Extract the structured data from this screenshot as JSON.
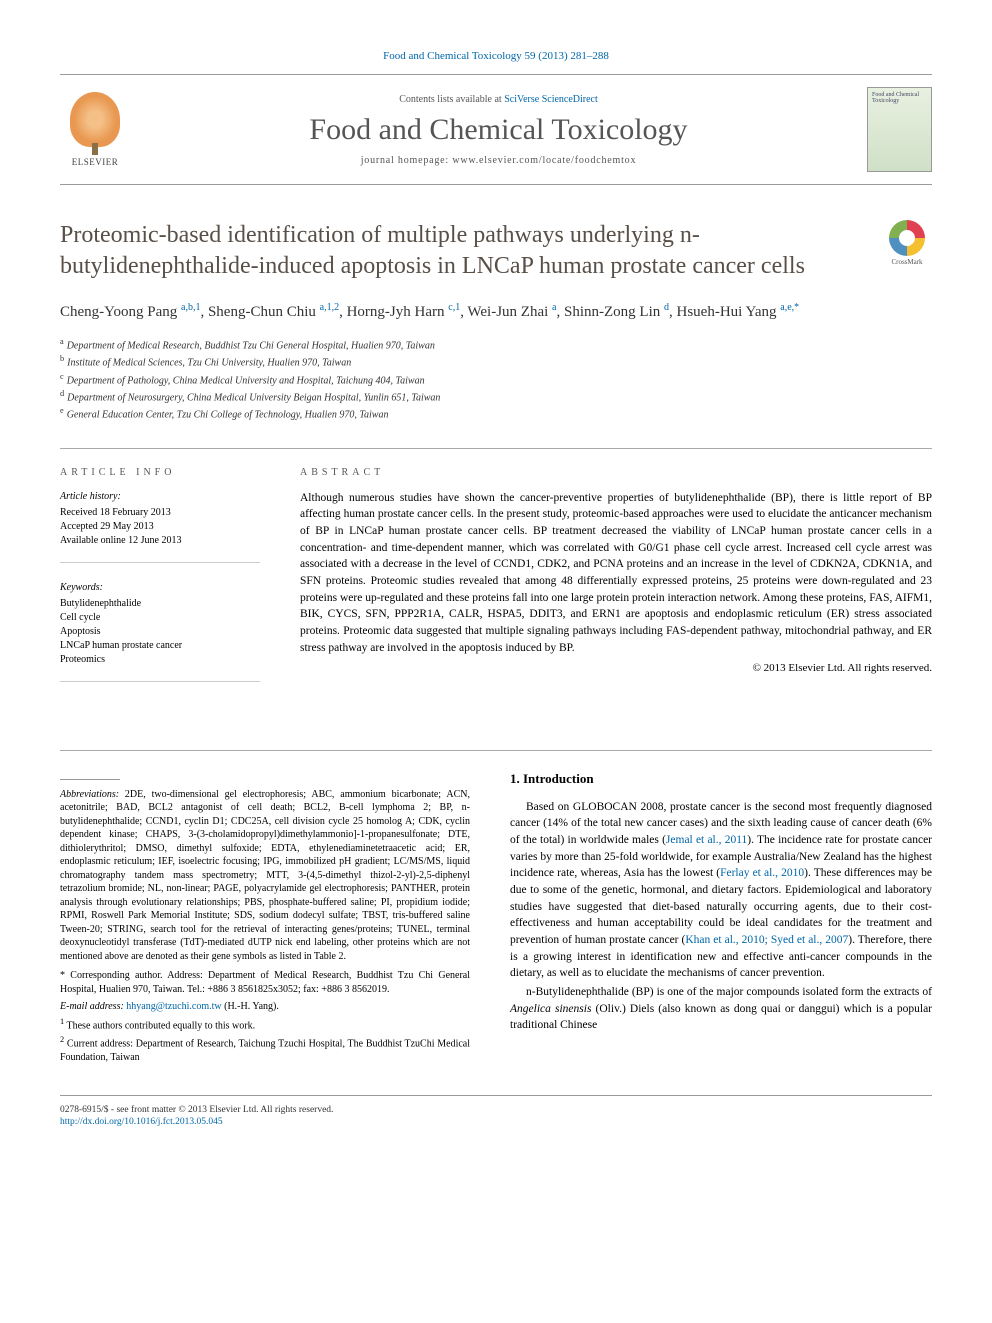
{
  "journal_reference": "Food and Chemical Toxicology 59 (2013) 281–288",
  "header": {
    "contents_prefix": "Contents lists available at ",
    "contents_link": "SciVerse ScienceDirect",
    "journal_title": "Food and Chemical Toxicology",
    "homepage_prefix": "journal homepage: ",
    "homepage_url": "www.elsevier.com/locate/foodchemtox",
    "elsevier_label": "ELSEVIER",
    "cover_label_top": "Food and Chemical Toxicology"
  },
  "crossmark_label": "CrossMark",
  "article_title": "Proteomic-based identification of multiple pathways underlying n-butylidenephthalide-induced apoptosis in LNCaP human prostate cancer cells",
  "authors_html": "Cheng-Yoong Pang <sup>a,b,1</sup>, Sheng-Chun Chiu <sup>a,1,2</sup>, Horng-Jyh Harn <sup>c,1</sup>, Wei-Jun Zhai <sup>a</sup>, Shinn-Zong Lin <sup>d</sup>, Hsueh-Hui Yang <sup>a,e,*</sup>",
  "affiliations": [
    {
      "sup": "a",
      "text": "Department of Medical Research, Buddhist Tzu Chi General Hospital, Hualien 970, Taiwan"
    },
    {
      "sup": "b",
      "text": "Institute of Medical Sciences, Tzu Chi University, Hualien 970, Taiwan"
    },
    {
      "sup": "c",
      "text": "Department of Pathology, China Medical University and Hospital, Taichung 404, Taiwan"
    },
    {
      "sup": "d",
      "text": "Department of Neurosurgery, China Medical University Beigan Hospital, Yunlin 651, Taiwan"
    },
    {
      "sup": "e",
      "text": "General Education Center, Tzu Chi College of Technology, Hualien 970, Taiwan"
    }
  ],
  "article_info": {
    "heading": "ARTICLE INFO",
    "history_label": "Article history:",
    "history": [
      "Received 18 February 2013",
      "Accepted 29 May 2013",
      "Available online 12 June 2013"
    ],
    "keywords_label": "Keywords:",
    "keywords": [
      "Butylidenephthalide",
      "Cell cycle",
      "Apoptosis",
      "LNCaP human prostate cancer",
      "Proteomics"
    ]
  },
  "abstract": {
    "heading": "ABSTRACT",
    "text": "Although numerous studies have shown the cancer-preventive properties of butylidenephthalide (BP), there is little report of BP affecting human prostate cancer cells. In the present study, proteomic-based approaches were used to elucidate the anticancer mechanism of BP in LNCaP human prostate cancer cells. BP treatment decreased the viability of LNCaP human prostate cancer cells in a concentration- and time-dependent manner, which was correlated with G0/G1 phase cell cycle arrest. Increased cell cycle arrest was associated with a decrease in the level of CCND1, CDK2, and PCNA proteins and an increase in the level of CDKN2A, CDKN1A, and SFN proteins. Proteomic studies revealed that among 48 differentially expressed proteins, 25 proteins were down-regulated and 23 proteins were up-regulated and these proteins fall into one large protein protein interaction network. Among these proteins, FAS, AIFM1, BIK, CYCS, SFN, PPP2R1A, CALR, HSPA5, DDIT3, and ERN1 are apoptosis and endoplasmic reticulum (ER) stress associated proteins. Proteomic data suggested that multiple signaling pathways including FAS-dependent pathway, mitochondrial pathway, and ER stress pathway are involved in the apoptosis induced by BP.",
    "copyright": "© 2013 Elsevier Ltd. All rights reserved."
  },
  "abbreviations": {
    "label": "Abbreviations:",
    "text": "2DE, two-dimensional gel electrophoresis; ABC, ammonium bicarbonate; ACN, acetonitrile; BAD, BCL2 antagonist of cell death; BCL2, B-cell lymphoma 2; BP, n-butylidenephthalide; CCND1, cyclin D1; CDC25A, cell division cycle 25 homolog A; CDK, cyclin dependent kinase; CHAPS, 3-(3-cholamidopropyl)dimethylammonio]-1-propanesulfonate; DTE, dithiolerythritol; DMSO, dimethyl sulfoxide; EDTA, ethylenediaminetetraacetic acid; ER, endoplasmic reticulum; IEF, isoelectric focusing; IPG, immobilized pH gradient; LC/MS/MS, liquid chromatography tandem mass spectrometry; MTT, 3-(4,5-dimethyl thizol-2-yl)-2,5-diphenyl tetrazolium bromide; NL, non-linear; PAGE, polyacrylamide gel electrophoresis; PANTHER, protein analysis through evolutionary relationships; PBS, phosphate-buffered saline; PI, propidium iodide; RPMI, Roswell Park Memorial Institute; SDS, sodium dodecyl sulfate; TBST, tris-buffered saline Tween-20; STRING, search tool for the retrieval of interacting genes/proteins; TUNEL, terminal deoxynucleotidyl transferase (TdT)-mediated dUTP nick end labeling, other proteins which are not mentioned above are denoted as their gene symbols as listed in Table 2."
  },
  "footnotes": {
    "corresponding": "* Corresponding author. Address: Department of Medical Research, Buddhist Tzu Chi General Hospital, Hualien 970, Taiwan. Tel.: +886 3 8561825x3052; fax: +886 3 8562019.",
    "email_label": "E-mail address:",
    "email": "hhyang@tzuchi.com.tw",
    "email_name": "(H.-H. Yang).",
    "note1": "These authors contributed equally to this work.",
    "note2": "Current address: Department of Research, Taichung Tzuchi Hospital, The Buddhist TzuChi Medical Foundation, Taiwan"
  },
  "introduction": {
    "heading": "1. Introduction",
    "paragraphs": [
      "Based on GLOBOCAN 2008, prostate cancer is the second most frequently diagnosed cancer (14% of the total new cancer cases) and the sixth leading cause of cancer death (6% of the total) in worldwide males (Jemal et al., 2011). The incidence rate for prostate cancer varies by more than 25-fold worldwide, for example Australia/New Zealand has the highest incidence rate, whereas, Asia has the lowest (Ferlay et al., 2010). These differences may be due to some of the genetic, hormonal, and dietary factors. Epidemiological and laboratory studies have suggested that diet-based naturally occurring agents, due to their cost-effectiveness and human acceptability could be ideal candidates for the treatment and prevention of human prostate cancer (Khan et al., 2010; Syed et al., 2007). Therefore, there is a growing interest in identification new and effective anti-cancer compounds in the dietary, as well as to elucidate the mechanisms of cancer prevention.",
      "n-Butylidenephthalide (BP) is one of the major compounds isolated form the extracts of Angelica sinensis (Oliv.) Diels (also known as dong quai or danggui) which is a popular traditional Chinese"
    ]
  },
  "footer": {
    "issn_line": "0278-6915/$ - see front matter © 2013 Elsevier Ltd. All rights reserved.",
    "doi": "http://dx.doi.org/10.1016/j.fct.2013.05.045"
  },
  "colors": {
    "link": "#0066a8",
    "title": "#585048",
    "text": "#000000",
    "muted": "#555555",
    "border": "#999999"
  }
}
